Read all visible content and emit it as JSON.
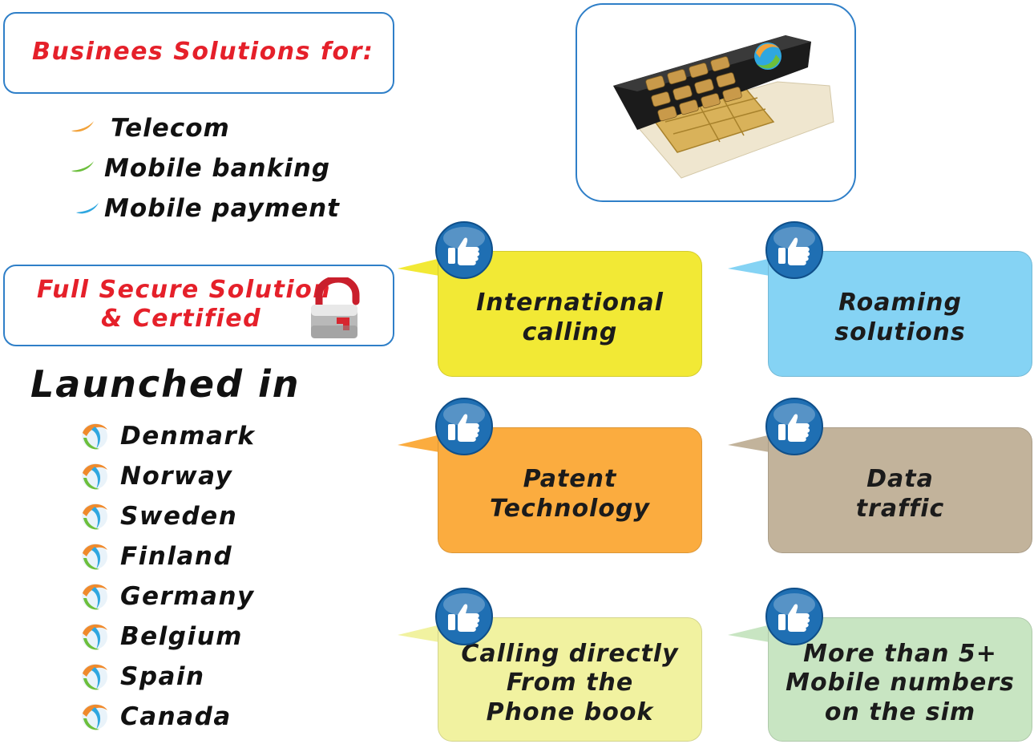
{
  "business": {
    "title": "Businees Solutions for:",
    "items": [
      {
        "label": "Telecom",
        "color": "#f2a23a"
      },
      {
        "label": "Mobile banking",
        "color": "#6cbf3c"
      },
      {
        "label": "Mobile payment",
        "color": "#2fa7e0"
      }
    ]
  },
  "secure": {
    "line1": "Full Secure Solution",
    "line2": "& Certified"
  },
  "launched": {
    "title": "Launched in",
    "countries": [
      "Denmark",
      "Norway",
      "Sweden",
      "Finland",
      "Germany",
      "Belgium",
      "Spain",
      "Canada"
    ]
  },
  "features": [
    {
      "text": [
        "International",
        "calling"
      ],
      "color": "#f2e935"
    },
    {
      "text": [
        "Roaming",
        "solutions"
      ],
      "color": "#85d3f4"
    },
    {
      "text": [
        "Patent",
        "Technology"
      ],
      "color": "#fbac3f"
    },
    {
      "text": [
        "Data",
        "traffic"
      ],
      "color": "#c2b39b"
    },
    {
      "text": [
        "Calling directly",
        "From the",
        "Phone book"
      ],
      "color": "#f1f2a0"
    },
    {
      "text": [
        "More than 5+",
        "Mobile numbers",
        "on the sim"
      ],
      "color": "#c8e5c2"
    }
  ],
  "colors": {
    "box_border": "#2f7fc8",
    "title_red": "#e5202a",
    "thumb_blue": "#1f6fb3"
  },
  "icons": [
    "swoosh-bullet-icon",
    "padlock-icon",
    "globe-logo-icon",
    "thumbs-up-icon",
    "sim-card-icon"
  ]
}
